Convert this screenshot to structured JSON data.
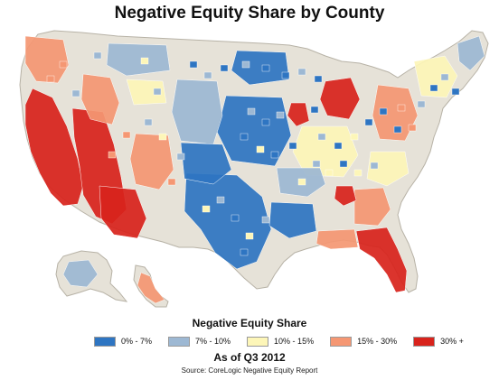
{
  "title": "Negative Equity Share by County",
  "legend": {
    "title": "Negative Equity Share",
    "items": [
      {
        "label": "0% - 7%",
        "color": "#2e75c2"
      },
      {
        "label": "7% - 10%",
        "color": "#9db8d3"
      },
      {
        "label": "10% - 15%",
        "color": "#fdf6b8"
      },
      {
        "label": "15% - 30%",
        "color": "#f59773"
      },
      {
        "label": "30% +",
        "color": "#d8231c"
      }
    ]
  },
  "date_label": "As of Q3 2012",
  "source": "Source: CoreLogic Negative Equity Report",
  "map": {
    "base_color": "#e6e2d8",
    "border_color": "#b7b2a6",
    "water_color": "#ffffff",
    "regions": [
      "contiguous-us",
      "alaska",
      "hawaii"
    ]
  }
}
